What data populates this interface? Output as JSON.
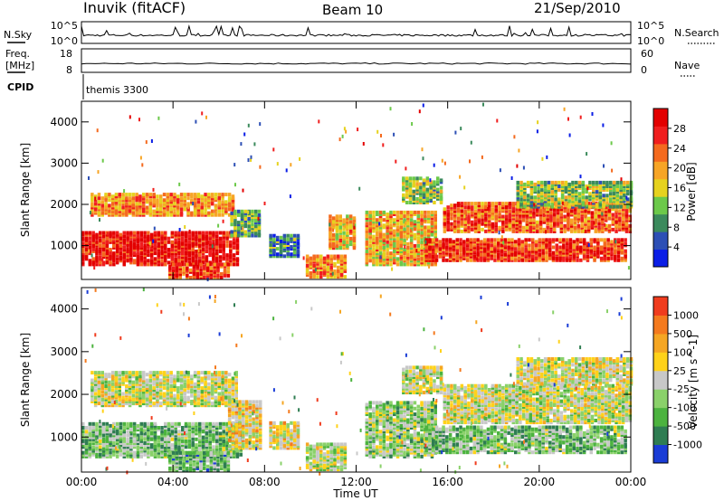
{
  "header": {
    "station": "Inuvik (fitACF)",
    "beam": "Beam 10",
    "date": "21/Sep/2010"
  },
  "status_panel": {
    "nsky_label": "N.Sky",
    "nsky_ticks": [
      "10^5",
      "10^0"
    ],
    "nsearch_label": "N.Search",
    "nsearch_ticks": [
      "10^5",
      "10^0"
    ],
    "freq_label_line1": "Freq.",
    "freq_label_line2": "[MHz]",
    "freq_ticks": [
      "18",
      "8"
    ],
    "nave_label": "Nave",
    "nave_ticks": [
      "60",
      "0"
    ],
    "cpid_label": "CPID",
    "cpid_value": "themis 3300"
  },
  "x_axis": {
    "label": "Time UT",
    "ticks": [
      "00:00",
      "04:00",
      "08:00",
      "12:00",
      "16:00",
      "20:00",
      "00:00"
    ]
  },
  "chart_data": [
    {
      "type": "heatmap",
      "title": "",
      "xlabel": "Time UT",
      "ylabel": "Slant Range [km]",
      "xlim_hours": [
        0,
        24
      ],
      "ylim_km": [
        180,
        4500
      ],
      "yticks": [
        "1000",
        "2000",
        "3000",
        "4000"
      ],
      "colorbar": {
        "label": "Power [dB]",
        "ticks": [
          "4",
          "8",
          "12",
          "16",
          "20",
          "24",
          "28"
        ],
        "colors": [
          "#0b1ee6",
          "#2d4fb5",
          "#3b8a5c",
          "#6cc94a",
          "#e6d21e",
          "#f7a526",
          "#f46a1e",
          "#f01e1e",
          "#e30000"
        ]
      },
      "bands": [
        {
          "t0": 0.0,
          "t1": 6.8,
          "r0": 500,
          "r1": 1300,
          "value": 26
        },
        {
          "t0": 0.4,
          "t1": 6.6,
          "r0": 1700,
          "r1": 2200,
          "value": 20
        },
        {
          "t0": 3.8,
          "t1": 6.4,
          "r0": 180,
          "r1": 500,
          "value": 24
        },
        {
          "t0": 6.5,
          "t1": 7.8,
          "r0": 1200,
          "r1": 1800,
          "value": 12
        },
        {
          "t0": 8.2,
          "t1": 9.5,
          "r0": 700,
          "r1": 1200,
          "value": 10
        },
        {
          "t0": 9.8,
          "t1": 11.6,
          "r0": 200,
          "r1": 700,
          "value": 20
        },
        {
          "t0": 10.8,
          "t1": 12.0,
          "r0": 900,
          "r1": 1700,
          "value": 18
        },
        {
          "t0": 12.4,
          "t1": 15.5,
          "r0": 500,
          "r1": 1800,
          "value": 18
        },
        {
          "t0": 14.0,
          "t1": 15.8,
          "r0": 2000,
          "r1": 2600,
          "value": 14
        },
        {
          "t0": 15.0,
          "t1": 23.8,
          "r0": 600,
          "r1": 1100,
          "value": 24
        },
        {
          "t0": 15.8,
          "t1": 24.0,
          "r0": 1300,
          "r1": 2000,
          "value": 22
        },
        {
          "t0": 19.0,
          "t1": 24.0,
          "r0": 1900,
          "r1": 2500,
          "value": 14
        }
      ]
    },
    {
      "type": "heatmap",
      "title": "",
      "xlabel": "Time UT",
      "ylabel": "Slant Range [km]",
      "xlim_hours": [
        0,
        24
      ],
      "ylim_km": [
        180,
        4500
      ],
      "yticks": [
        "1000",
        "2000",
        "3000",
        "4000"
      ],
      "colorbar": {
        "label": "Velocity [m s^-1]",
        "ticks": [
          "1000",
          "500",
          "100",
          "25",
          "-25",
          "-100",
          "-500",
          "-1000"
        ],
        "colors": [
          "#1a3cd6",
          "#2f7d52",
          "#4cb33f",
          "#8ad16a",
          "#c8c8c8",
          "#ffd21a",
          "#f5a623",
          "#f47a1e",
          "#f03c1e"
        ]
      },
      "bands": [
        {
          "t0": 0.0,
          "t1": 7.0,
          "r0": 500,
          "r1": 1300,
          "value": -300
        },
        {
          "t0": 0.4,
          "t1": 6.8,
          "r0": 1700,
          "r1": 2500,
          "value": 0
        },
        {
          "t0": 3.8,
          "t1": 6.4,
          "r0": 180,
          "r1": 600,
          "value": -400
        },
        {
          "t0": 6.4,
          "t1": 7.8,
          "r0": 700,
          "r1": 1800,
          "value": 200
        },
        {
          "t0": 8.2,
          "t1": 9.5,
          "r0": 700,
          "r1": 1300,
          "value": 150
        },
        {
          "t0": 9.8,
          "t1": 11.6,
          "r0": 200,
          "r1": 800,
          "value": 0
        },
        {
          "t0": 12.4,
          "t1": 15.5,
          "r0": 500,
          "r1": 1800,
          "value": -200
        },
        {
          "t0": 14.0,
          "t1": 15.8,
          "r0": 2000,
          "r1": 2600,
          "value": 0
        },
        {
          "t0": 15.0,
          "t1": 23.8,
          "r0": 600,
          "r1": 1200,
          "value": -300
        },
        {
          "t0": 15.8,
          "t1": 24.0,
          "r0": 1300,
          "r1": 2200,
          "value": 0
        },
        {
          "t0": 19.0,
          "t1": 24.0,
          "r0": 2200,
          "r1": 2800,
          "value": 60
        }
      ]
    }
  ]
}
